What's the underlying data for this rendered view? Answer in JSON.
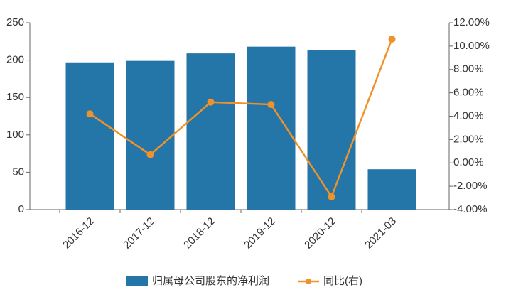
{
  "chart_data": {
    "type": "bar",
    "categories": [
      "2016-12",
      "2017-12",
      "2018-12",
      "2019-12",
      "2020-12",
      "2021-03"
    ],
    "series": [
      {
        "name": "归属母公司股东的净利润",
        "type": "bar",
        "color": "#2475a8",
        "values": [
          197,
          199,
          209,
          218,
          213,
          54
        ]
      },
      {
        "name": "同比(右)",
        "type": "line",
        "axis": "y2",
        "color": "#f0922b",
        "values": [
          4.2,
          0.7,
          5.2,
          5.0,
          -2.9,
          10.6
        ]
      }
    ],
    "ylim": [
      0,
      250
    ],
    "yticks": [
      0,
      50,
      100,
      150,
      200,
      250
    ],
    "y2lim": [
      -4,
      12
    ],
    "y2ticks": [
      {
        "value": -4,
        "label": "-4.00%"
      },
      {
        "value": -2,
        "label": "-2.00%"
      },
      {
        "value": 0,
        "label": "0.00%"
      },
      {
        "value": 2,
        "label": "2.00%"
      },
      {
        "value": 4,
        "label": "4.00%"
      },
      {
        "value": 6,
        "label": "6.00%"
      },
      {
        "value": 8,
        "label": "8.00%"
      },
      {
        "value": 10,
        "label": "10.00%"
      },
      {
        "value": 12,
        "label": "12.00%"
      }
    ],
    "grid": false,
    "legend": "bottom"
  }
}
